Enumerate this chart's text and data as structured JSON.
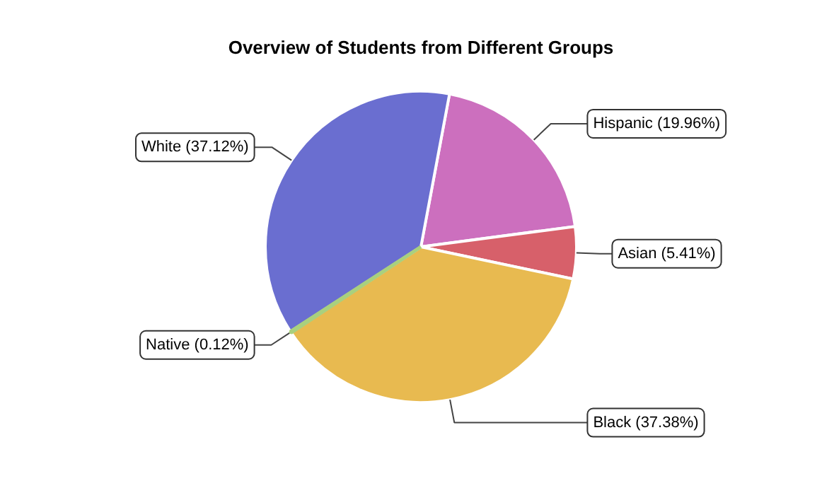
{
  "chart_data": {
    "type": "pie",
    "title": "Overview of Students from Different Groups",
    "categories": [
      "Hispanic (19.96%)",
      "Asian (5.41%)",
      "Black (37.38%)",
      "Native (0.12%)",
      "White (37.12%)"
    ],
    "values": [
      19.96,
      5.41,
      37.38,
      0.12,
      37.12
    ],
    "colors": [
      "#cc6fbe",
      "#d7606a",
      "#e8ba50",
      "#a9d07e",
      "#6a6ed0"
    ]
  }
}
